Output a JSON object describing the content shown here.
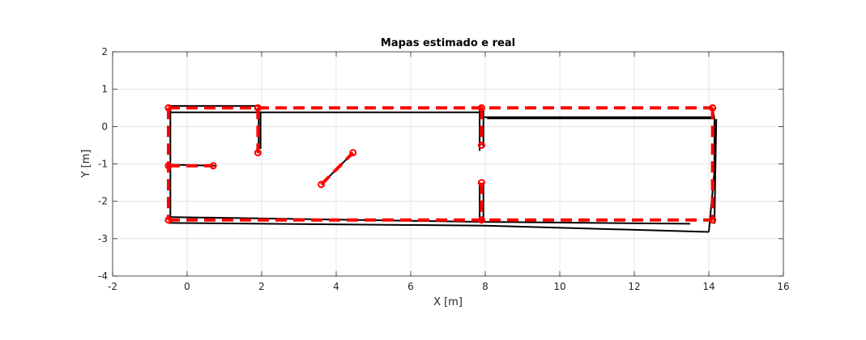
{
  "chart_data": {
    "type": "line",
    "title": "Mapas estimado e real",
    "xlabel": "X [m]",
    "ylabel": "Y [m]",
    "xlim": [
      -2,
      16
    ],
    "ylim": [
      -4,
      2
    ],
    "xticks": [
      -2,
      0,
      2,
      4,
      6,
      8,
      10,
      12,
      14,
      16
    ],
    "yticks": [
      -4,
      -3,
      -2,
      -1,
      0,
      1,
      2
    ],
    "grid": true,
    "legend": "none",
    "series": [
      {
        "style": "solid",
        "color": "#000000",
        "markers": false,
        "segments": [
          [
            [
              -0.5,
              0.55
            ],
            [
              1.95,
              0.55
            ]
          ],
          [
            [
              -0.45,
              0.38
            ],
            [
              7.9,
              0.38
            ]
          ],
          [
            [
              -0.45,
              0.55
            ],
            [
              -0.45,
              -2.5
            ]
          ],
          [
            [
              1.92,
              0.55
            ],
            [
              1.92,
              -0.72
            ]
          ],
          [
            [
              1.97,
              0.4
            ],
            [
              1.97,
              -0.6
            ]
          ],
          [
            [
              -0.45,
              -1.02
            ],
            [
              0.75,
              -1.05
            ]
          ],
          [
            [
              3.6,
              -1.55
            ],
            [
              4.45,
              -0.7
            ]
          ],
          [
            [
              7.85,
              0.5
            ],
            [
              7.85,
              -0.65
            ]
          ],
          [
            [
              7.95,
              0.45
            ],
            [
              7.95,
              -0.55
            ]
          ],
          [
            [
              8.05,
              0.22
            ],
            [
              14.15,
              0.22
            ]
          ],
          [
            [
              7.95,
              0.25
            ],
            [
              14.15,
              0.25
            ]
          ],
          [
            [
              7.85,
              -1.5
            ],
            [
              7.85,
              -2.55
            ]
          ],
          [
            [
              7.95,
              -1.5
            ],
            [
              7.95,
              -2.55
            ]
          ],
          [
            [
              -0.5,
              -2.42
            ],
            [
              8.0,
              -2.55
            ],
            [
              13.5,
              -2.6
            ]
          ],
          [
            [
              -0.5,
              -2.58
            ],
            [
              8.0,
              -2.65
            ],
            [
              14.0,
              -2.82
            ]
          ],
          [
            [
              14.1,
              0.5
            ],
            [
              14.15,
              0.2
            ],
            [
              14.15,
              -1.2
            ],
            [
              14.0,
              -2.82
            ]
          ],
          [
            [
              14.2,
              0.2
            ],
            [
              14.15,
              -2.6
            ]
          ]
        ]
      },
      {
        "style": "dashed",
        "color": "#ff0000",
        "markers": true,
        "segments": [
          [
            [
              -0.5,
              0.5
            ],
            [
              1.9,
              0.5
            ],
            [
              7.9,
              0.5
            ],
            [
              14.1,
              0.5
            ]
          ],
          [
            [
              -0.5,
              -2.5
            ],
            [
              7.9,
              -2.5
            ],
            [
              14.1,
              -2.5
            ]
          ],
          [
            [
              -0.5,
              0.5
            ],
            [
              -0.5,
              -1.05
            ],
            [
              -0.5,
              -2.5
            ]
          ],
          [
            [
              14.1,
              0.5
            ],
            [
              14.1,
              -2.5
            ]
          ],
          [
            [
              1.9,
              0.5
            ],
            [
              1.9,
              -0.7
            ]
          ],
          [
            [
              7.9,
              0.5
            ],
            [
              7.9,
              -0.5
            ]
          ],
          [
            [
              7.9,
              -1.5
            ],
            [
              7.9,
              -2.5
            ]
          ],
          [
            [
              -0.5,
              -1.05
            ],
            [
              0.7,
              -1.05
            ]
          ],
          [
            [
              3.6,
              -1.55
            ],
            [
              4.45,
              -0.7
            ]
          ]
        ]
      }
    ]
  }
}
